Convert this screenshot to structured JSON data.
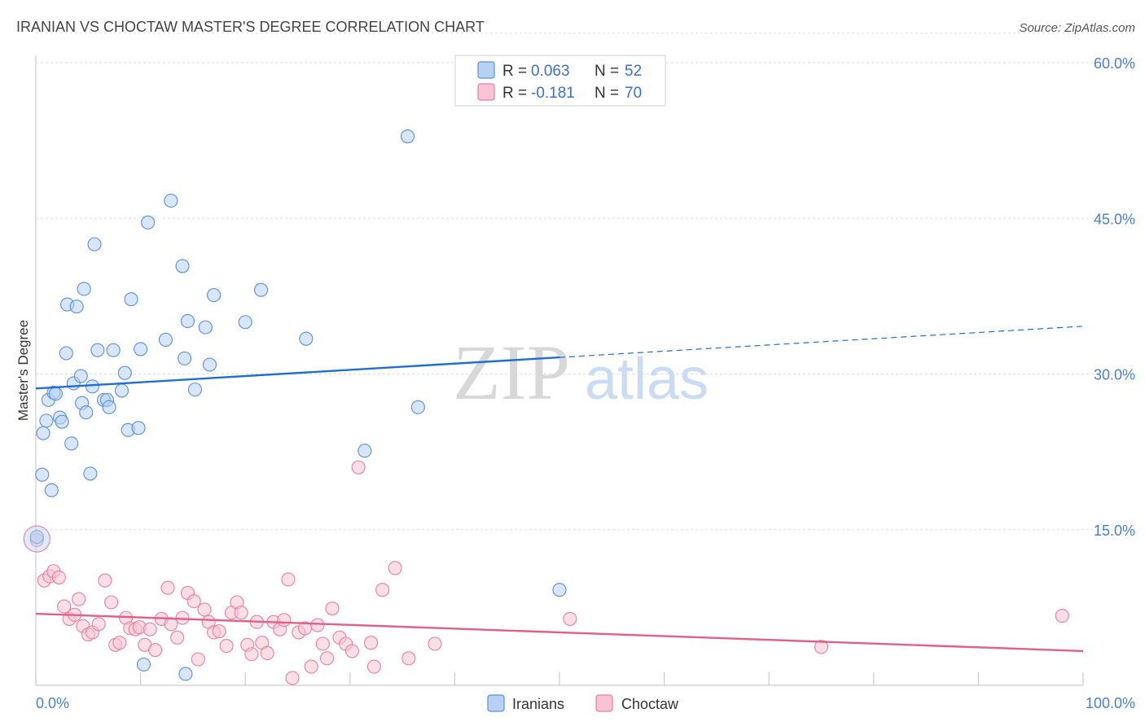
{
  "header": {
    "title": "IRANIAN VS CHOCTAW MASTER'S DEGREE CORRELATION CHART",
    "source": "Source: ZipAtlas.com"
  },
  "watermark": {
    "zip": "ZIP",
    "atlas": "atlas"
  },
  "colors": {
    "blue_fill": "#b7d1f3",
    "blue_stroke": "#5b8fd8",
    "blue_line": "#1f6fd0",
    "pink_fill": "#f8c4d3",
    "pink_stroke": "#e87fa0",
    "pink_line": "#e0608c",
    "grid": "#dddddd",
    "axis_text": "#4a7fd0"
  },
  "legend": {
    "rows": [
      {
        "r_label": "R =",
        "r_value": "0.063",
        "n_label": "N =",
        "n_value": "52"
      },
      {
        "r_label": "R =",
        "r_value": "-0.181",
        "n_label": "N =",
        "n_value": "70"
      }
    ]
  },
  "chart_data": {
    "type": "scatter",
    "title": "IRANIAN VS CHOCTAW MASTER'S DEGREE CORRELATION CHART",
    "xlabel": "",
    "ylabel": "Master's Degree",
    "xlim": [
      0,
      100
    ],
    "ylim": [
      0,
      63
    ],
    "x_tick_labels": [
      "0.0%",
      "100.0%"
    ],
    "y_ticks": [
      15,
      30,
      45,
      60
    ],
    "y_tick_labels": [
      "15.0%",
      "30.0%",
      "45.0%",
      "60.0%"
    ],
    "grid": true,
    "legend_position": "top-center",
    "series": [
      {
        "name": "Iranians",
        "color": "#5b8fd8",
        "points": [
          [
            0.1,
            14.3
          ],
          [
            0.6,
            20.3
          ],
          [
            0.7,
            24.3
          ],
          [
            1.0,
            25.5
          ],
          [
            1.2,
            27.5
          ],
          [
            1.5,
            18.8
          ],
          [
            1.7,
            28.2
          ],
          [
            1.9,
            28.1
          ],
          [
            2.3,
            25.8
          ],
          [
            2.5,
            25.4
          ],
          [
            2.9,
            32.0
          ],
          [
            3.0,
            36.7
          ],
          [
            3.4,
            23.3
          ],
          [
            3.6,
            29.1
          ],
          [
            3.9,
            36.5
          ],
          [
            4.3,
            29.8
          ],
          [
            4.4,
            27.2
          ],
          [
            4.6,
            38.2
          ],
          [
            4.8,
            26.3
          ],
          [
            5.2,
            20.4
          ],
          [
            5.4,
            28.8
          ],
          [
            5.6,
            42.5
          ],
          [
            5.9,
            32.3
          ],
          [
            6.5,
            27.5
          ],
          [
            6.8,
            27.5
          ],
          [
            7.0,
            26.8
          ],
          [
            7.4,
            32.3
          ],
          [
            8.2,
            28.4
          ],
          [
            8.5,
            30.1
          ],
          [
            8.8,
            24.6
          ],
          [
            9.1,
            37.2
          ],
          [
            9.8,
            24.8
          ],
          [
            10.0,
            32.4
          ],
          [
            10.3,
            2.0
          ],
          [
            10.7,
            44.6
          ],
          [
            12.4,
            33.3
          ],
          [
            12.9,
            46.7
          ],
          [
            14.0,
            40.4
          ],
          [
            14.2,
            31.5
          ],
          [
            14.3,
            1.1
          ],
          [
            14.5,
            35.1
          ],
          [
            15.2,
            28.5
          ],
          [
            16.2,
            34.5
          ],
          [
            16.6,
            30.9
          ],
          [
            17.0,
            37.6
          ],
          [
            20.0,
            35.0
          ],
          [
            21.5,
            38.1
          ],
          [
            25.8,
            33.4
          ],
          [
            31.4,
            22.6
          ],
          [
            35.5,
            52.9
          ],
          [
            36.5,
            26.8
          ],
          [
            50.0,
            9.2
          ]
        ]
      },
      {
        "name": "Choctaw",
        "color": "#e87fa0",
        "points": [
          [
            0.1,
            14.0
          ],
          [
            0.8,
            10.1
          ],
          [
            1.3,
            10.5
          ],
          [
            1.7,
            11.0
          ],
          [
            2.2,
            10.4
          ],
          [
            2.7,
            7.6
          ],
          [
            3.2,
            6.4
          ],
          [
            3.7,
            6.8
          ],
          [
            4.1,
            8.3
          ],
          [
            4.5,
            5.7
          ],
          [
            5.0,
            4.9
          ],
          [
            5.4,
            5.1
          ],
          [
            6.0,
            5.9
          ],
          [
            6.6,
            10.1
          ],
          [
            7.2,
            8.0
          ],
          [
            7.6,
            3.9
          ],
          [
            8.0,
            4.1
          ],
          [
            8.6,
            6.5
          ],
          [
            9.0,
            5.5
          ],
          [
            9.5,
            5.4
          ],
          [
            9.9,
            5.6
          ],
          [
            10.4,
            3.9
          ],
          [
            10.9,
            5.4
          ],
          [
            11.4,
            3.4
          ],
          [
            12.0,
            6.4
          ],
          [
            12.6,
            9.4
          ],
          [
            12.9,
            5.9
          ],
          [
            13.5,
            4.6
          ],
          [
            14.0,
            6.5
          ],
          [
            14.5,
            8.9
          ],
          [
            15.1,
            8.1
          ],
          [
            15.5,
            2.5
          ],
          [
            16.1,
            7.3
          ],
          [
            16.5,
            6.1
          ],
          [
            17.0,
            5.1
          ],
          [
            17.5,
            5.2
          ],
          [
            18.2,
            3.8
          ],
          [
            18.7,
            7.0
          ],
          [
            19.2,
            8.0
          ],
          [
            19.6,
            7.0
          ],
          [
            20.2,
            3.9
          ],
          [
            20.6,
            3.0
          ],
          [
            21.1,
            6.1
          ],
          [
            21.6,
            4.1
          ],
          [
            22.1,
            3.1
          ],
          [
            22.7,
            6.1
          ],
          [
            23.3,
            5.4
          ],
          [
            23.7,
            6.3
          ],
          [
            24.1,
            10.2
          ],
          [
            24.5,
            0.7
          ],
          [
            25.1,
            5.1
          ],
          [
            25.7,
            5.5
          ],
          [
            26.3,
            1.8
          ],
          [
            26.9,
            5.8
          ],
          [
            27.4,
            4.0
          ],
          [
            27.8,
            2.6
          ],
          [
            28.3,
            7.4
          ],
          [
            29.0,
            4.6
          ],
          [
            29.6,
            4.0
          ],
          [
            30.2,
            3.3
          ],
          [
            30.8,
            21.0
          ],
          [
            32.0,
            4.1
          ],
          [
            32.3,
            1.8
          ],
          [
            33.1,
            9.2
          ],
          [
            34.3,
            11.3
          ],
          [
            35.6,
            2.6
          ],
          [
            38.1,
            4.0
          ],
          [
            51.0,
            6.4
          ],
          [
            75.0,
            3.7
          ],
          [
            98.0,
            6.7
          ]
        ]
      }
    ],
    "trendlines": [
      {
        "series": "Iranians",
        "x": [
          0,
          50
        ],
        "y": [
          28.6,
          31.6
        ],
        "dashed_extension": {
          "x": [
            50,
            100
          ],
          "y": [
            31.6,
            34.6
          ]
        }
      },
      {
        "series": "Choctaw",
        "x": [
          0,
          100
        ],
        "y": [
          6.9,
          3.3
        ]
      }
    ]
  }
}
